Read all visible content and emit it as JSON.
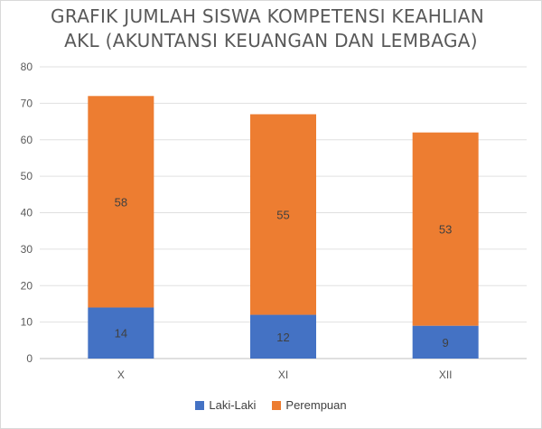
{
  "chart_data": {
    "type": "bar",
    "stacked": true,
    "title": "GRAFIK JUMLAH SISWA KOMPETENSI KEAHLIAN AKL (AKUNTANSI KEUANGAN DAN LEMBAGA)",
    "title_lines": [
      "GRAFIK JUMLAH SISWA KOMPETENSI KEAHLIAN",
      "AKL (AKUNTANSI KEUANGAN DAN LEMBAGA)"
    ],
    "categories": [
      "X",
      "XI",
      "XII"
    ],
    "series": [
      {
        "name": "Laki-Laki",
        "values": [
          14,
          12,
          9
        ],
        "color": "#4472C4"
      },
      {
        "name": "Perempuan",
        "values": [
          58,
          55,
          53
        ],
        "color": "#ED7D31"
      }
    ],
    "ylim": [
      0,
      80
    ],
    "yticks": [
      0,
      10,
      20,
      30,
      40,
      50,
      60,
      70,
      80
    ],
    "grid": true,
    "legend_position": "bottom",
    "xlabel": "",
    "ylabel": ""
  }
}
